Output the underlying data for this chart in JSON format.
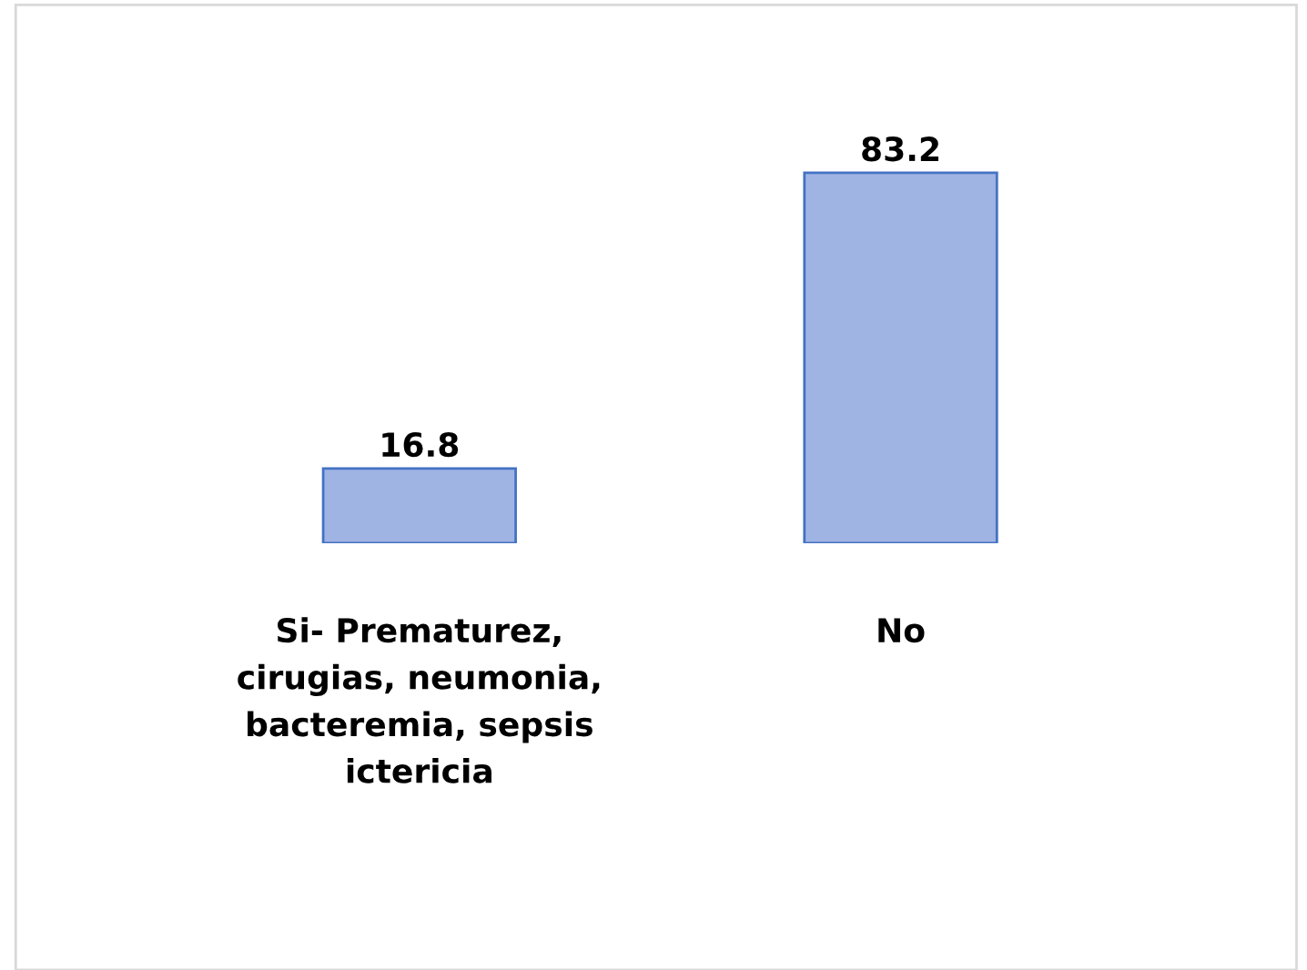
{
  "chart_data": {
    "type": "bar",
    "categories": [
      "Si- Prematurez,\ncirugias, neumonia,\nbacteremia, sepsis\nictericia",
      "No"
    ],
    "values": [
      16.8,
      83.2
    ],
    "color": "#a0b4e4",
    "data_labels": true
  }
}
